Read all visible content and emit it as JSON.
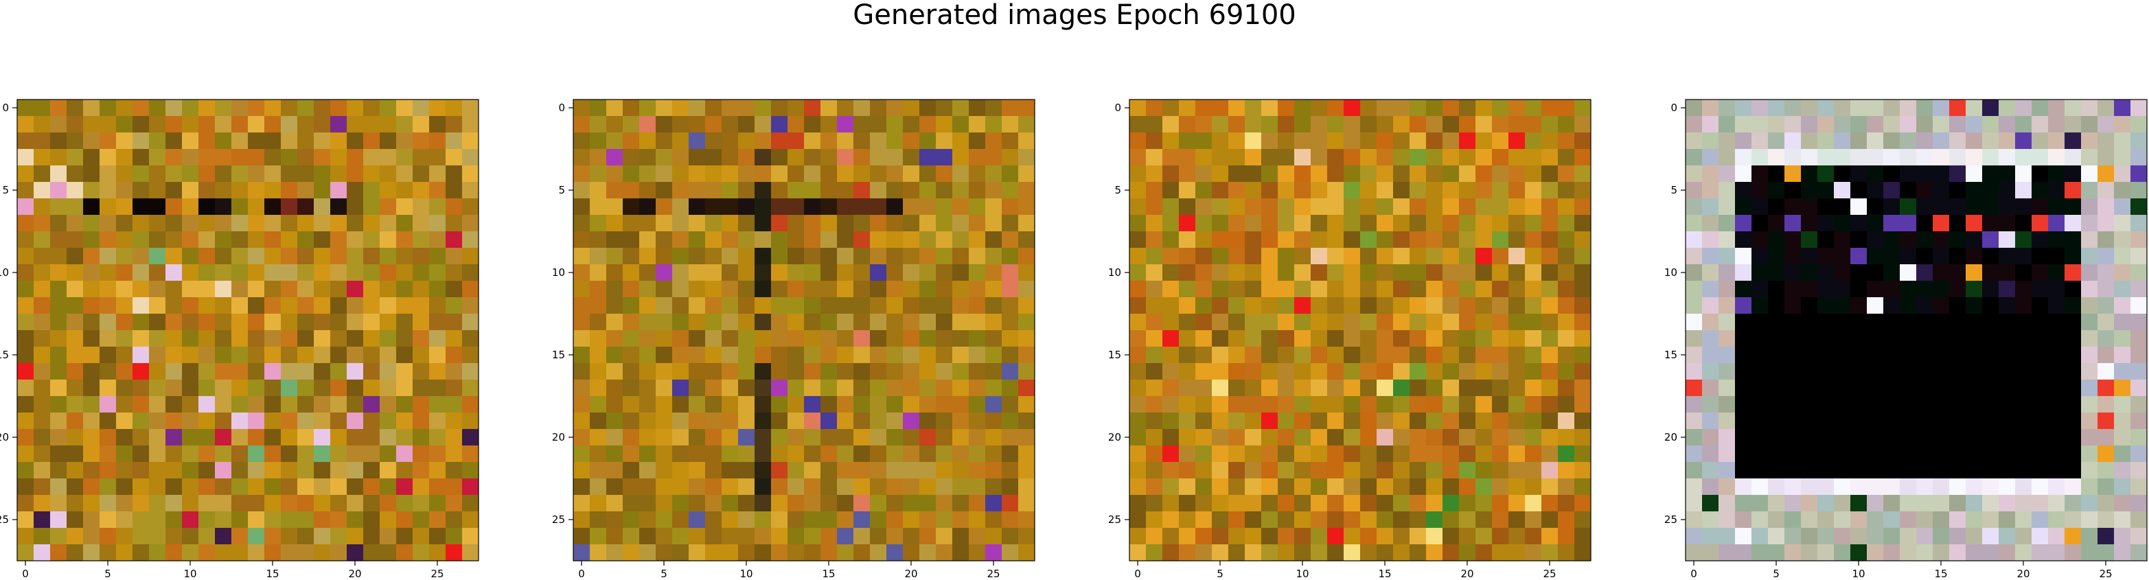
{
  "suptitle": "Generated images Epoch 69100",
  "chart_data": [
    {
      "type": "heatmap",
      "image_grid": [
        28,
        28
      ],
      "palette": [
        "#b6860f",
        "#a27612",
        "#c4900e",
        "#8a6a12",
        "#c8a03c",
        "#9c8f1c",
        "#7a5a10",
        "#d49616",
        "#b8862a",
        "#a06a16",
        "#c46e16",
        "#8c7c10",
        "#c8781a",
        "#bca654",
        "#ae9624",
        "#e6b23c"
      ],
      "dark_band": {
        "row": 6,
        "colors": [
          "#1a0a08",
          "#3a1410",
          "#0c0606",
          "#5c2c14",
          "#1a1010",
          "#7a2a1c"
        ]
      },
      "accents": [
        "#e8a0c8",
        "#c81a3a",
        "#70b070",
        "#f0d8b0",
        "#7a2a8a",
        "#ee1a1a",
        "#e8c8e8",
        "#3c1a4a"
      ],
      "xticks": [
        0,
        5,
        10,
        15,
        20,
        25
      ],
      "yticks": [
        0,
        5,
        10,
        15,
        20,
        25
      ],
      "xlim": [
        -0.5,
        27.5
      ],
      "ylim": [
        27.5,
        -0.5
      ]
    },
    {
      "type": "heatmap",
      "image_grid": [
        28,
        28
      ],
      "palette": [
        "#b6860f",
        "#a27612",
        "#c4900e",
        "#8a6a12",
        "#a09018",
        "#9c6a10",
        "#7a5a10",
        "#d09616",
        "#b88020",
        "#946a14",
        "#c07216",
        "#887c10",
        "#c07c1a",
        "#b89a3c",
        "#a89020",
        "#d8a830"
      ],
      "dark_band": {
        "row": 6,
        "colors": [
          "#1a0a08",
          "#3a1410",
          "#2c1808",
          "#5c2c14",
          "#1a1010"
        ]
      },
      "dark_column": {
        "col": 11,
        "colors": [
          "#3c2c10",
          "#2a2410",
          "#4a3818",
          "#1e1e10"
        ]
      },
      "accents": [
        "#5a5aa0",
        "#a83ab8",
        "#c8421a",
        "#4a3a9a",
        "#e07a5a"
      ],
      "xticks": [
        0,
        5,
        10,
        15,
        20,
        25
      ],
      "yticks": [
        0,
        5,
        10,
        15,
        20,
        25
      ],
      "xlim": [
        -0.5,
        27.5
      ],
      "ylim": [
        27.5,
        -0.5
      ]
    },
    {
      "type": "heatmap",
      "image_grid": [
        28,
        28
      ],
      "palette": [
        "#b6860f",
        "#a27612",
        "#c4900e",
        "#8a6a12",
        "#c86a10",
        "#9c8f1c",
        "#7a5a10",
        "#d49616",
        "#b8862a",
        "#a05a12",
        "#c46e16",
        "#8c7c10",
        "#c8781a",
        "#e8a020",
        "#ae9624",
        "#e6b23c"
      ],
      "accents": [
        "#3a8a2a",
        "#ee1a1a",
        "#f8e080",
        "#1a3a6a",
        "#e8b8b0",
        "#7aa030",
        "#f0c8a0"
      ],
      "xticks": [
        0,
        5,
        10,
        15,
        20,
        25
      ],
      "yticks": [
        0,
        5,
        10,
        15,
        20,
        25
      ],
      "xlim": [
        -0.5,
        27.5
      ],
      "ylim": [
        27.5,
        -0.5
      ]
    },
    {
      "type": "heatmap",
      "image_grid": [
        28,
        28
      ],
      "palette": [
        "#c8c8b0",
        "#b8c8a8",
        "#d8c8c8",
        "#a8b8a8",
        "#c8b8c8",
        "#b8a8b8",
        "#d8d8c8",
        "#98b098",
        "#c0a8a8",
        "#a8c0c0",
        "#d0b8a8",
        "#b0b8d0",
        "#e0c8d8",
        "#a0a890",
        "#c8d0b8",
        "#b8b8a0"
      ],
      "black_region": {
        "rows": [
          4,
          22
        ],
        "cols": [
          3,
          23
        ],
        "color": "#000000"
      },
      "white_strip": {
        "row": 23,
        "cols": [
          3,
          23
        ]
      },
      "accents": [
        "#ee3a2a",
        "#f8f8ff",
        "#5a3aaa",
        "#f0a020",
        "#0a3a10",
        "#2a1a4a",
        "#e8e0f8"
      ],
      "xticks": [
        0,
        5,
        10,
        15,
        20,
        25
      ],
      "yticks": [
        0,
        5,
        10,
        15,
        20,
        25
      ],
      "xlim": [
        -0.5,
        27.5
      ],
      "ylim": [
        27.5,
        -0.5
      ]
    }
  ]
}
